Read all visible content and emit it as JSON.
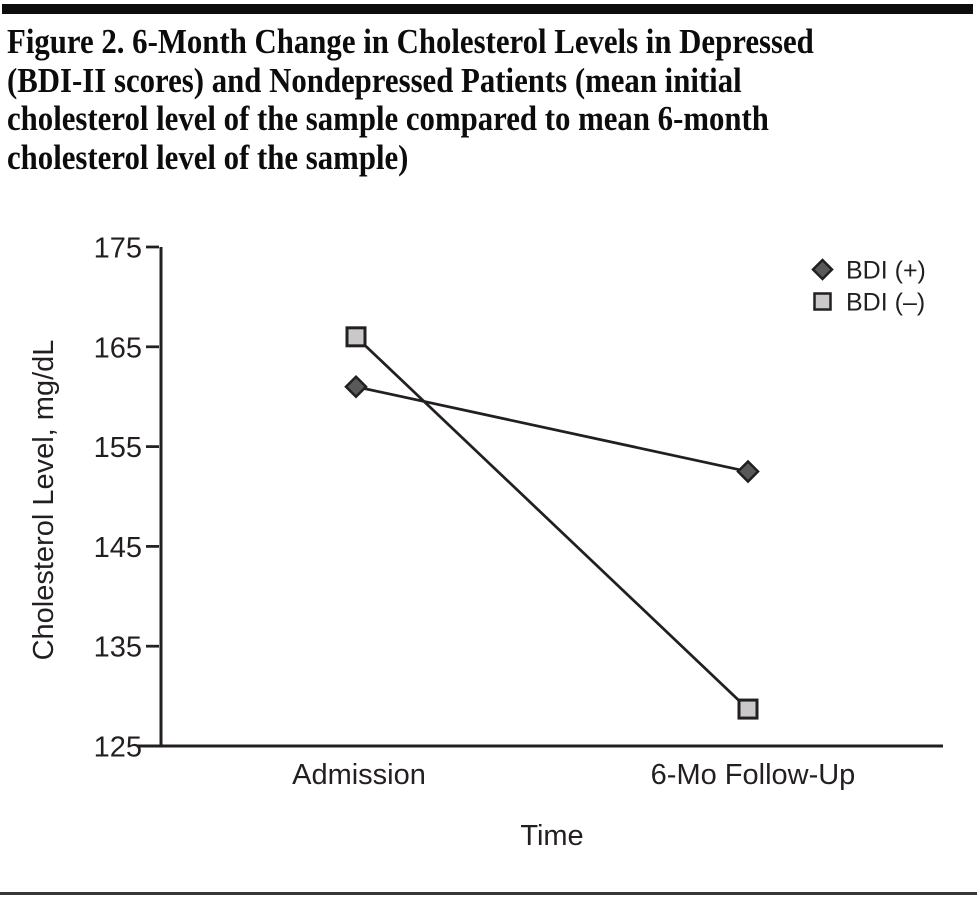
{
  "page": {
    "background": "#ffffff",
    "rule_color": "#0d0d0d"
  },
  "figure": {
    "title_lines": [
      "Figure 2. 6-Month Change in Cholesterol Levels in Depressed",
      "(BDI-II scores) and Nondepressed Patients (mean initial",
      "cholesterol level of the sample compared to mean 6-month",
      "cholesterol level of the sample)"
    ]
  },
  "chart_data": {
    "type": "line",
    "title": "6-Month Change in Cholesterol Levels in Depressed and Nondepressed Patients",
    "categories": [
      "Admission",
      "6-Mo Follow-Up"
    ],
    "series": [
      {
        "name": "BDI (+)",
        "marker": "diamond",
        "marker_fill": "#58595b",
        "values": [
          161,
          152.5
        ]
      },
      {
        "name": "BDI (–)",
        "marker": "square",
        "marker_fill": "#c9c9c7",
        "values": [
          166,
          128.7
        ]
      }
    ],
    "xlabel": "Time",
    "ylabel": "Cholesterol Level, mg/dL",
    "ylim": [
      125,
      175
    ],
    "yticks": [
      175,
      165,
      155,
      145,
      135,
      125
    ],
    "grid": false,
    "legend_position": "top-right",
    "line_color": "#231f20",
    "text_color": "#231f20"
  }
}
